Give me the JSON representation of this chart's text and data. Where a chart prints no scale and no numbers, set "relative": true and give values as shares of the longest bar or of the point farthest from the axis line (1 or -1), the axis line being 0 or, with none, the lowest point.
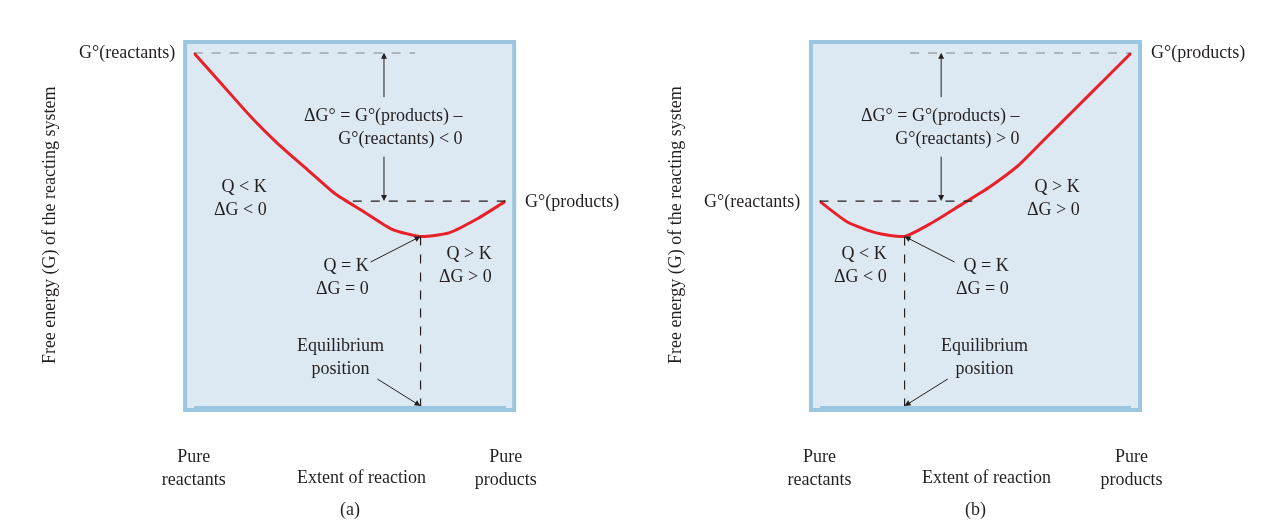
{
  "chart_data": [
    {
      "type": "line",
      "relative": true,
      "categories": [
        "Pure reactants",
        null,
        null,
        null,
        null,
        null,
        null,
        null,
        null,
        null,
        null,
        "Pure products"
      ],
      "series": [
        {
          "color": "#e8202a",
          "values": [
            1.0,
            0.91,
            0.82,
            0.74,
            0.67,
            0.6,
            0.55,
            0.5,
            0.48,
            0.49,
            0.53,
            0.58
          ]
        }
      ],
      "xlabel": "Extent of reaction",
      "ylabel": "Free energy (G) of the reacting system",
      "ref_lines": [
        {
          "axis": "y",
          "value": 1.0,
          "label": "G°(reactants)",
          "line_style": "dashed",
          "color": "#231f20"
        },
        {
          "axis": "y",
          "value": 0.58,
          "label": "G°(products)",
          "line_style": "dashed",
          "color": "#231f20"
        }
      ],
      "annotations": [
        "ΔG° = G°(products) –\nG°(reactants) < 0",
        "Q < K\nΔG < 0",
        "Q > K\nΔG > 0",
        "Q = K\nΔG = 0",
        "Equilibrium\nposition",
        "(a)"
      ]
    },
    {
      "type": "line",
      "relative": true,
      "categories": [
        "Pure reactants",
        null,
        null,
        null,
        null,
        null,
        null,
        null,
        null,
        null,
        null,
        "Pure products"
      ],
      "series": [
        {
          "color": "#e8202a",
          "values": [
            0.58,
            0.52,
            0.49,
            0.48,
            0.52,
            0.57,
            0.62,
            0.68,
            0.76,
            0.84,
            0.92,
            1.0
          ]
        }
      ],
      "xlabel": "Extent of reaction",
      "ylabel": "Free energy (G) of the reacting system",
      "ref_lines": [
        {
          "axis": "y",
          "value": 0.58,
          "label": "G°(reactants)",
          "line_style": "dashed",
          "color": "#231f20"
        },
        {
          "axis": "y",
          "value": 1.0,
          "label": "G°(products)",
          "line_style": "dashed",
          "color": "#231f20"
        }
      ],
      "annotations": [
        "ΔG° = G°(products) –\nG°(reactants) > 0",
        "Q < K\nΔG < 0",
        "Q > K\nΔG > 0",
        "Q = K\nΔG = 0",
        "Equilibrium\nposition",
        "(b)"
      ]
    }
  ]
}
